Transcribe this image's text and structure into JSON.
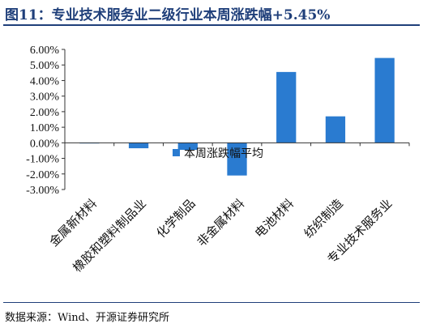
{
  "figure_title": "图11：专业技术服务业二级行业本周涨跌幅+5.45%",
  "source": "数据来源：Wind、开源证券研究所",
  "colors": {
    "bar": "#2a7bd0",
    "title": "#1f3f7a",
    "axis": "#333333"
  },
  "chart_data": {
    "type": "bar",
    "title": "",
    "xlabel": "",
    "ylabel": "",
    "categories": [
      "金属新材料",
      "橡胶和塑料制品业",
      "化学制品",
      "非金属材料",
      "电池材料",
      "纺织制造",
      "专业技术服务业"
    ],
    "series": [
      {
        "name": "本周涨跌幅平均",
        "values": [
          0.01,
          -0.35,
          -0.45,
          -2.1,
          4.55,
          1.7,
          5.45
        ]
      }
    ],
    "ylim": [
      -3.0,
      6.0
    ],
    "yticks": [
      6.0,
      5.0,
      4.0,
      3.0,
      2.0,
      1.0,
      0.0,
      -1.0,
      -2.0,
      -3.0
    ],
    "ytick_labels": [
      "6.00%",
      "5.00%",
      "4.00%",
      "3.00%",
      "2.00%",
      "1.00%",
      "0.00%",
      "-1.00%",
      "-2.00%",
      "-3.00%"
    ],
    "grid": false,
    "legend": {
      "position": "inside-center-left",
      "entries": [
        "本周涨跌幅平均"
      ]
    }
  }
}
